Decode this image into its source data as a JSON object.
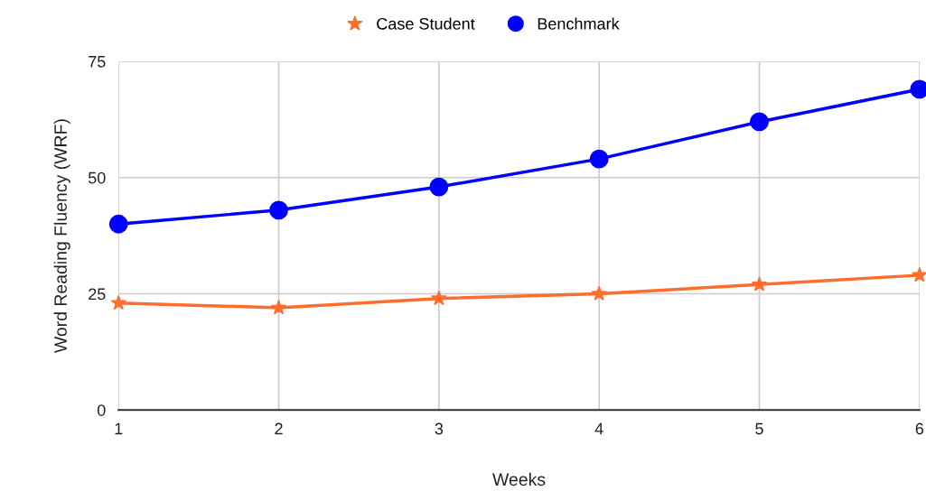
{
  "chart_data": {
    "type": "line",
    "xlabel": "Weeks",
    "ylabel": "Word Reading Fluency (WRF)",
    "x": [
      1,
      2,
      3,
      4,
      5,
      6
    ],
    "series": [
      {
        "name": "Case Student",
        "color": "#ff6d2d",
        "marker": "star",
        "values": [
          23,
          22,
          24,
          25,
          27,
          29
        ]
      },
      {
        "name": "Benchmark",
        "color": "#0000ff",
        "marker": "circle",
        "values": [
          40,
          43,
          48,
          54,
          62,
          69
        ]
      }
    ],
    "xlim": [
      1,
      6
    ],
    "xticks": [
      1,
      2,
      3,
      4,
      5,
      6
    ],
    "ylim": [
      0,
      75
    ],
    "yticks": [
      0,
      25,
      50,
      75
    ],
    "grid": true,
    "legend": "top",
    "line_style": "solid"
  }
}
